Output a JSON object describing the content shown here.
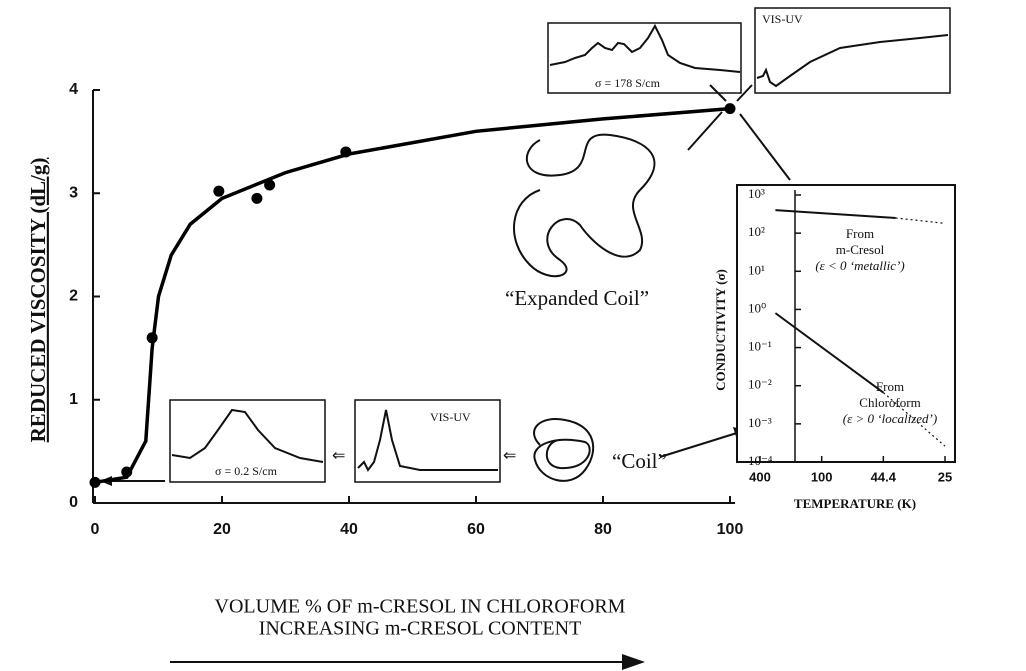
{
  "chart_data": [
    {
      "type": "scatter",
      "y_label": "REDUCED VISCOSITY (dL/g)",
      "x_label": "VOLUME % OF m-CRESOL IN CHLOROFORM",
      "subtitle": "INCREASING m-CRESOL CONTENT",
      "x": [
        0,
        5,
        9,
        19.5,
        25.5,
        27.5,
        39.5,
        100
      ],
      "values": [
        0.2,
        0.3,
        1.6,
        3.02,
        2.95,
        3.08,
        3.4,
        3.82
      ],
      "curve": {
        "x": [
          0,
          5,
          8,
          9,
          10,
          12,
          15,
          20,
          30,
          40,
          60,
          80,
          100
        ],
        "values": [
          0.2,
          0.25,
          0.6,
          1.5,
          2.0,
          2.4,
          2.7,
          2.95,
          3.2,
          3.38,
          3.6,
          3.72,
          3.82
        ]
      },
      "color": "#000000",
      "xlim": [
        0,
        100
      ],
      "xticks": [
        0,
        20,
        40,
        60,
        80,
        100
      ],
      "ylim": [
        0,
        4
      ],
      "yticks": [
        0,
        1,
        2,
        3,
        4
      ],
      "annotations": [
        "“Expanded Coil”",
        "“Coil”",
        "σ = 178 S/cm",
        "VIS-UV",
        "σ = 0.2 S/cm",
        "VIS-UV"
      ]
    },
    {
      "type": "line",
      "log_y": true,
      "y_label": "CONDUCTIVITY (σ)",
      "x_label": "TEMPERATURE (K)",
      "xlim": [
        0.038,
        0.202
      ],
      "xticks": [
        {
          "value": 0.05,
          "label": "400"
        },
        {
          "value": 0.1,
          "label": "100"
        },
        {
          "value": 0.15,
          "label": "44.4"
        },
        {
          "value": 0.2,
          "label": "25"
        }
      ],
      "ylim": [
        0.0001,
        1000
      ],
      "yticks": [
        {
          "value": 1000,
          "label": "10³"
        },
        {
          "value": 100,
          "label": "10²"
        },
        {
          "value": 10,
          "label": "10¹"
        },
        {
          "value": 1,
          "label": "10⁰"
        },
        {
          "value": 0.1,
          "label": "10⁻¹"
        },
        {
          "value": 0.01,
          "label": "10⁻²"
        },
        {
          "value": 0.001,
          "label": "10⁻³"
        },
        {
          "value": 0.0001,
          "label": "10⁻⁴"
        }
      ],
      "series": [
        {
          "style": "solid",
          "x": [
            0.0625,
            0.16
          ],
          "values": [
            400,
            250
          ]
        },
        {
          "style": "dotted",
          "x": [
            0.16,
            0.2
          ],
          "values": [
            250,
            180
          ]
        },
        {
          "style": "solid",
          "x": [
            0.0625,
            0.15
          ],
          "values": [
            0.8,
            0.0066
          ]
        },
        {
          "style": "dotted",
          "x": [
            0.15,
            0.2
          ],
          "values": [
            0.0066,
            0.00026
          ]
        }
      ],
      "annotations": [
        [
          "From",
          "m-Cresol",
          "(ε < 0 ‘metallic’)"
        ],
        [
          "From",
          "Chloroform",
          "(ε > 0 ‘localized’)"
        ]
      ]
    }
  ]
}
